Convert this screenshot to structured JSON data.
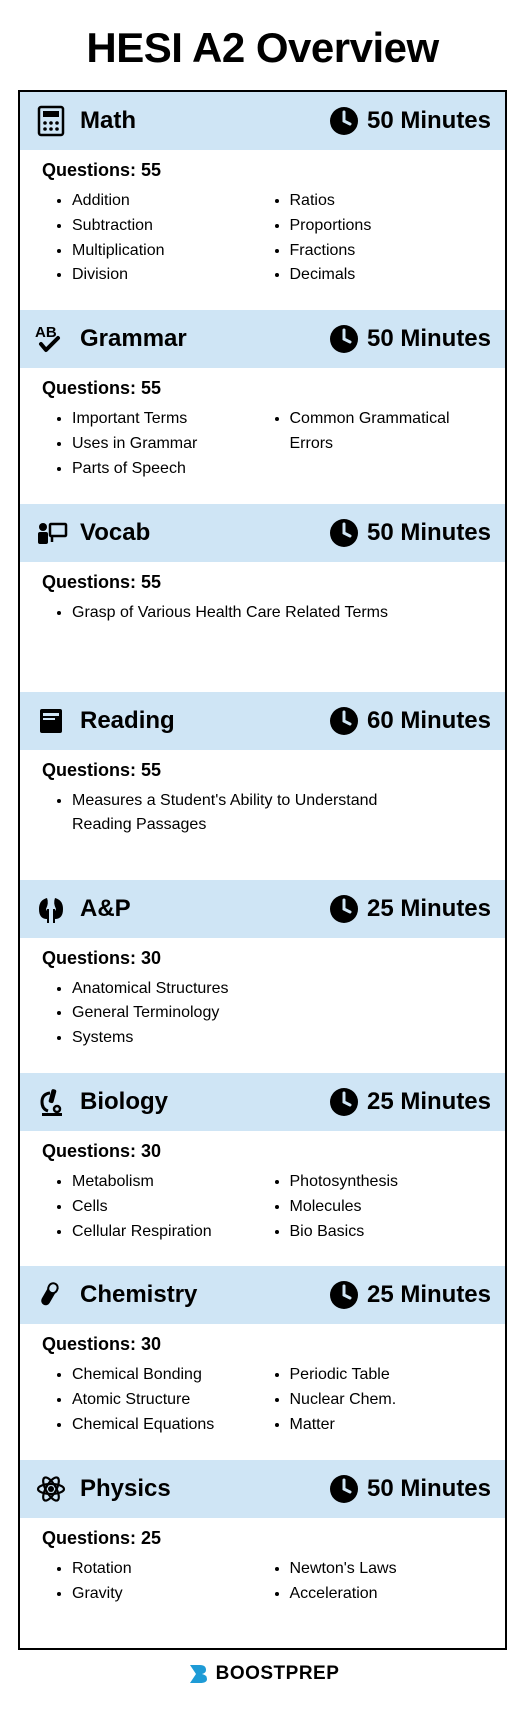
{
  "title": "HESI A2 Overview",
  "colors": {
    "header_bg": "#cfe5f5",
    "border": "#000000",
    "text": "#000000",
    "bg": "#ffffff",
    "footer_accent": "#1e9bd6"
  },
  "footer": {
    "brand": "BOOSTPREP"
  },
  "sections": [
    {
      "icon": "calculator",
      "name": "Math",
      "time": "50 Minutes",
      "questions": "Questions: 55",
      "topics_left": [
        "Addition",
        "Subtraction",
        "Multiplication",
        "Division"
      ],
      "topics_right": [
        "Ratios",
        "Proportions",
        "Fractions",
        "Decimals"
      ]
    },
    {
      "icon": "abc-check",
      "name": "Grammar",
      "time": "50 Minutes",
      "questions": "Questions: 55",
      "topics_left": [
        "Important Terms",
        "Uses in Grammar",
        "Parts of Speech"
      ],
      "topics_right": [
        "Common Grammatical Errors"
      ]
    },
    {
      "icon": "teacher",
      "name": "Vocab",
      "time": "50 Minutes",
      "questions": "Questions: 55",
      "topics_left": [
        "Grasp of Various Health Care Related Terms"
      ],
      "topics_right": []
    },
    {
      "icon": "book",
      "name": "Reading",
      "time": "60 Minutes",
      "questions": "Questions: 55",
      "topics_left": [
        "Measures a Student's Ability to Understand Reading Passages"
      ],
      "topics_right": []
    },
    {
      "icon": "kidneys",
      "name": "A&P",
      "time": "25 Minutes",
      "questions": "Questions: 30",
      "topics_left": [
        "Anatomical Structures",
        "General Terminology",
        "Systems"
      ],
      "topics_right": []
    },
    {
      "icon": "microscope",
      "name": "Biology",
      "time": "25 Minutes",
      "questions": "Questions: 30",
      "topics_left": [
        "Metabolism",
        "Cells",
        "Cellular Respiration"
      ],
      "topics_right": [
        "Photosynthesis",
        "Molecules",
        "Bio Basics"
      ]
    },
    {
      "icon": "testtube",
      "name": "Chemistry",
      "time": "25 Minutes",
      "questions": "Questions: 30",
      "topics_left": [
        "Chemical Bonding",
        "Atomic Structure",
        "Chemical Equations"
      ],
      "topics_right": [
        "Periodic Table",
        "Nuclear Chem.",
        "Matter"
      ]
    },
    {
      "icon": "atom",
      "name": "Physics",
      "time": "50 Minutes",
      "questions": "Questions: 25",
      "topics_left": [
        "Rotation",
        "Gravity"
      ],
      "topics_right": [
        "Newton's Laws",
        "Acceleration"
      ]
    }
  ]
}
